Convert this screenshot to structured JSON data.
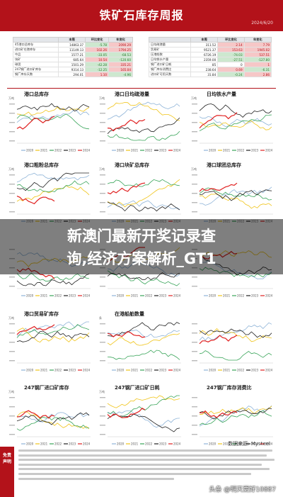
{
  "header": {
    "title": "铁矿石库存周报",
    "date": "2024/6/20"
  },
  "overlay": {
    "line1": "新澳门最新开奖记录查",
    "line2": "询,经济方案解析_GT1"
  },
  "footer": {
    "source": "数据来源: Mysteel",
    "disclaimer_label_1": "免责",
    "disclaimer_label_2": "声明",
    "watermark": "头条 @明天更好10887"
  },
  "tables": {
    "left": {
      "headers": [
        "",
        "本周",
        "环比变化",
        "年变化"
      ],
      "rows": [
        {
          "label": "45港口总库存",
          "cur": "14863.37",
          "wow": "-5.78",
          "yoy": "2090.29",
          "wow_s": "neg",
          "yoy_s": "pos"
        },
        {
          "label": "进口矿在港库存",
          "cur": "11149.13",
          "wow": "102.26",
          "yoy": "1794.25",
          "wow_s": "pos",
          "yoy_s": "pos"
        },
        {
          "label": "中品",
          "cur": "1577.21",
          "wow": "-33.05",
          "yoy": "-68.53",
          "wow_s": "neg",
          "yoy_s": "neg"
        },
        {
          "label": "块矿",
          "cur": "685.64",
          "wow": "10.54",
          "yoy": "-120.60",
          "wow_s": "pos",
          "yoy_s": "neg"
        },
        {
          "label": "球团",
          "cur": "1501.29",
          "wow": "-42.28",
          "yoy": "335.21",
          "wow_s": "neg",
          "yoy_s": "pos"
        },
        {
          "label": "247钢厂进口矿库存",
          "cur": "9314.13",
          "wow": "-12.25",
          "yoy": "165.04",
          "wow_s": "neg",
          "yoy_s": "pos"
        },
        {
          "label": "钢厂库存天数",
          "cur": "294.01",
          "wow": "1.10",
          "yoy": "-4.96",
          "wow_s": "pos",
          "yoy_s": "neg"
        }
      ]
    },
    "right": {
      "headers": [
        "",
        "本周",
        "环比变化",
        "年变化"
      ],
      "rows": [
        {
          "label": "日均疏港量",
          "cur": "311.52",
          "wow": "2.14",
          "yoy": "7.79",
          "wow_s": "pos",
          "yoy_s": "pos"
        },
        {
          "label": "贸易矿",
          "cur": "9521.37",
          "wow": "153.63",
          "yoy": "1945.02",
          "wow_s": "pos",
          "yoy_s": "pos"
        },
        {
          "label": "压港船数",
          "cur": "6726.19",
          "wow": "-74.03",
          "yoy": "537.51",
          "wow_s": "neg",
          "yoy_s": "pos"
        },
        {
          "label": "日均铁水产量",
          "cur": "2359.00",
          "wow": "-27.51",
          "yoy": "-127.80",
          "wow_s": "neg",
          "yoy_s": "neg"
        },
        {
          "label": "钢厂进口矿日耗",
          "cur": "85",
          "wow": "0",
          "yoy": "1",
          "wow_s": "",
          "yoy_s": "pos"
        },
        {
          "label": "钢厂库存消费比",
          "cur": "238.64",
          "wow": "0.69",
          "yoy": "-6.31",
          "wow_s": "pos",
          "yoy_s": "neg"
        },
        {
          "label": "进口矿可用天数",
          "cur": "31.84",
          "wow": "-0.24",
          "yoy": "2.86",
          "wow_s": "neg",
          "yoy_s": "pos"
        }
      ]
    }
  },
  "legend_years": [
    "2020",
    "2021",
    "2022",
    "2023",
    "2024"
  ],
  "colors": {
    "brand": "#b3121a",
    "y2020": "#8fb4d8",
    "y2021": "#f0c419",
    "y2022": "#3aa55a",
    "y2023": "#222222",
    "y2024": "#e02020"
  },
  "panels": [
    {
      "title": "港口总库存",
      "unit": "万吨"
    },
    {
      "title": "港口日均疏港量",
      "unit": "万吨"
    },
    {
      "title": "日均铁水产量",
      "unit": "万吨"
    },
    {
      "title": "港口粗粉总库存",
      "unit": "万吨"
    },
    {
      "title": "港口块矿总库存",
      "unit": "万吨"
    },
    {
      "title": "港口球团总库存",
      "unit": "万吨"
    },
    {
      "title": "",
      "unit": ""
    },
    {
      "title": "",
      "unit": ""
    },
    {
      "title": "",
      "unit": ""
    },
    {
      "title": "港口贸易矿库存",
      "unit": "万吨"
    },
    {
      "title": "在港船舶数量",
      "unit": "条"
    },
    {
      "title": "",
      "unit": ""
    },
    {
      "title": "247钢厂进口矿库存",
      "unit": "万吨"
    },
    {
      "title": "247钢厂进口矿日耗",
      "unit": "万吨"
    },
    {
      "title": "247钢厂库存消费比",
      "unit": ""
    }
  ]
}
